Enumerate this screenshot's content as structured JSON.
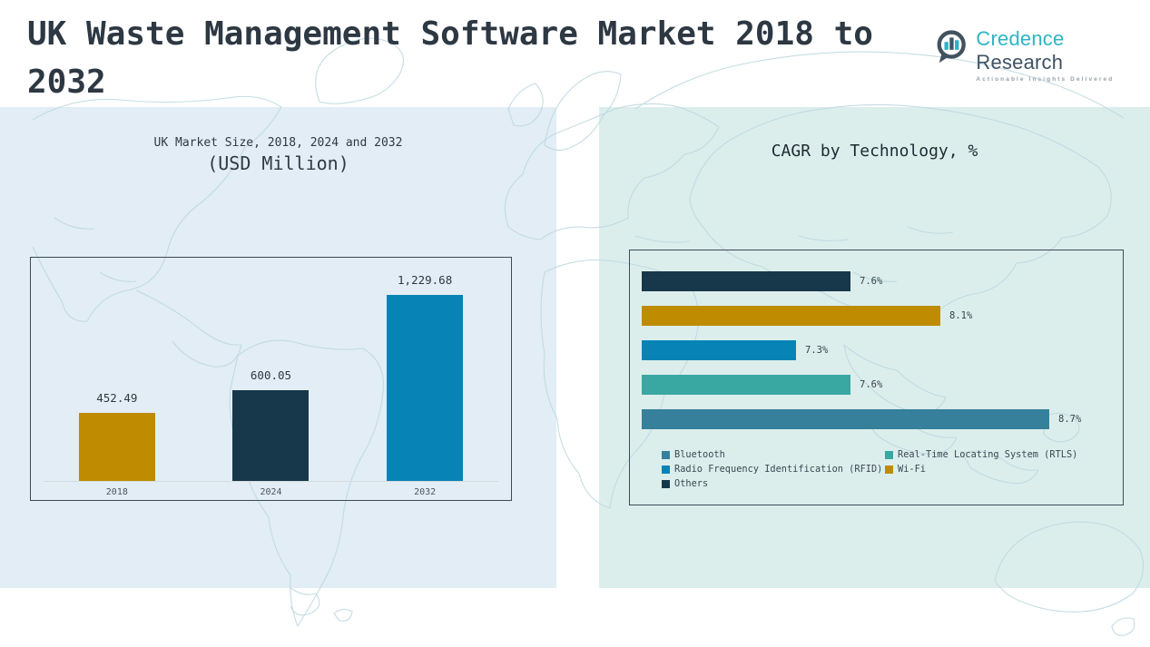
{
  "header": {
    "title": "UK Waste Management Software Market 2018 to 2032",
    "logo": {
      "primary": "Credence",
      "secondary": " Research",
      "tagline": "Actionable Insights Delivered"
    }
  },
  "theme": {
    "left_panel_bg": "#e2edf5",
    "right_panel_bg": "#dceeec",
    "map_line_color": "#bcd7e0",
    "box_border_color": "#3c4a54",
    "gold": "#bf8b00",
    "navy": "#17384a",
    "blue": "#0784b5",
    "teal": "#39a8a2",
    "steel_blue": "#36809b"
  },
  "chart_data": [
    {
      "type": "bar",
      "title": "UK Market Size, 2018, 2024 and 2032",
      "subtitle": "(USD Million)",
      "categories": [
        "2018",
        "2024",
        "2032"
      ],
      "values": [
        452.49,
        600.05,
        1229.68
      ],
      "value_labels": [
        "452.49",
        "600.05",
        "1,229.68"
      ],
      "colors": [
        "#bf8b00",
        "#17384a",
        "#0784b5"
      ],
      "xlabel": "",
      "ylabel": "",
      "ylim": [
        0,
        1300
      ],
      "grid": false,
      "legend_position": "none"
    },
    {
      "type": "horizontal-bar",
      "title": "CAGR by Technology, %",
      "series": [
        {
          "name": "Others",
          "value": 7.6,
          "label": "7.6%",
          "color": "#17384a"
        },
        {
          "name": "Wi-Fi",
          "value": 8.1,
          "label": "8.1%",
          "color": "#bf8b00"
        },
        {
          "name": "Radio Frequency Identification (RFID)",
          "value": 7.3,
          "label": "7.3%",
          "color": "#0784b5"
        },
        {
          "name": "Real-Time Locating System (RTLS)",
          "value": 7.6,
          "label": "7.6%",
          "color": "#39a8a2"
        },
        {
          "name": "Bluetooth",
          "value": 8.7,
          "label": "8.7%",
          "color": "#36809b"
        }
      ],
      "xlim": [
        6.45,
        9.05
      ],
      "grid": false,
      "legend_position": "bottom",
      "legend": [
        {
          "key": "bluetooth",
          "name": "Bluetooth",
          "color": "#36809b"
        },
        {
          "key": "rtls",
          "name": "Real-Time Locating System (RTLS)",
          "color": "#39a8a2"
        },
        {
          "key": "rfid",
          "name": "Radio Frequency Identification (RFID)",
          "color": "#0784b5"
        },
        {
          "key": "wifi",
          "name": "Wi-Fi",
          "color": "#bf8b00"
        },
        {
          "key": "others",
          "name": "Others",
          "color": "#17384a"
        }
      ]
    }
  ]
}
